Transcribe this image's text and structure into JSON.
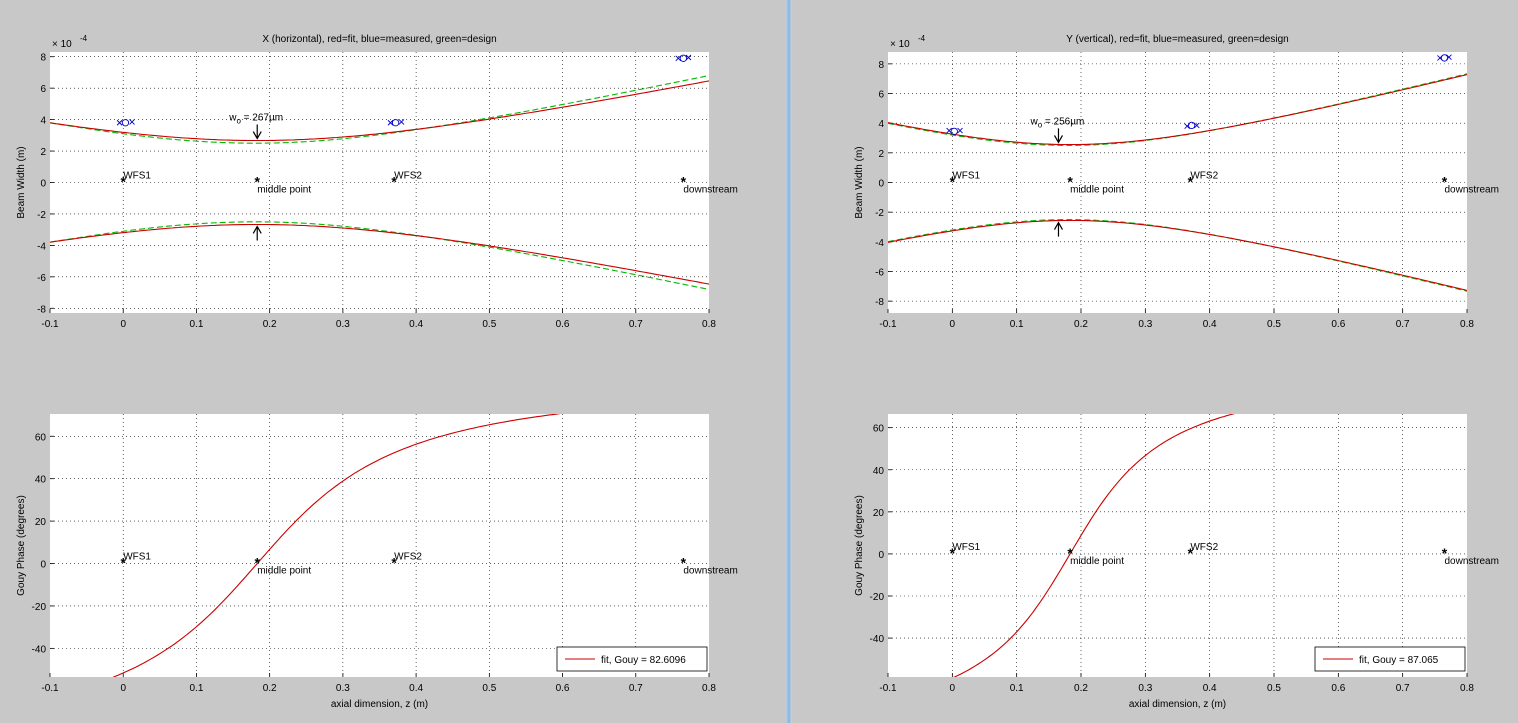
{
  "panels": [
    {
      "id": "x",
      "title": "X (horizontal), red=fit, blue=measured, green=design",
      "top": {
        "chart_data": {
          "type": "line",
          "title": "X (horizontal), red=fit, blue=measured, green=design",
          "xlabel": "",
          "ylabel": "Beam Width (m)",
          "exponent": "× 10",
          "exponent_power": "-4",
          "xlim": [
            -0.1,
            0.8
          ],
          "ylim": [
            -8.3,
            8.3
          ],
          "xticks": [
            -0.1,
            0,
            0.1,
            0.2,
            0.3,
            0.4,
            0.5,
            0.6,
            0.7,
            0.8
          ],
          "xticklabels": [
            "-0.1",
            "0",
            "0.1",
            "0.2",
            "0.3",
            "0.4",
            "0.5",
            "0.6",
            "0.7",
            "0.8"
          ],
          "yticks": [
            -8,
            -6,
            -4,
            -2,
            0,
            2,
            4,
            6,
            8
          ],
          "yticklabels": [
            "-8",
            "-6",
            "-4",
            "-2",
            "0",
            "2",
            "4",
            "6",
            "8"
          ],
          "grid": true,
          "beam": {
            "waist_z": 0.183,
            "waist": 2.67,
            "zR": 0.28,
            "m2": 1.0
          },
          "design": {
            "waist_z": 0.18,
            "waist": 2.5,
            "zR": 0.245
          },
          "waist_label": "267µm",
          "waist_annotation_z": 0.183,
          "measured": [
            {
              "z": -0.005,
              "w": 3.8
            },
            {
              "z": 0.003,
              "w": 3.8
            },
            {
              "z": 0.012,
              "w": 3.85
            },
            {
              "z": 0.365,
              "w": 3.8
            },
            {
              "z": 0.372,
              "w": 3.8
            },
            {
              "z": 0.38,
              "w": 3.85
            },
            {
              "z": 0.758,
              "w": 7.9
            },
            {
              "z": 0.765,
              "w": 7.9
            },
            {
              "z": 0.772,
              "w": 7.95
            }
          ],
          "markers": [
            {
              "z": 0,
              "label": "WFS1",
              "pos": "above"
            },
            {
              "z": 0.183,
              "label": "middle point",
              "pos": "below"
            },
            {
              "z": 0.37,
              "label": "WFS2",
              "pos": "above"
            },
            {
              "z": 0.765,
              "label": "downstream",
              "pos": "below"
            }
          ]
        }
      },
      "bottom": {
        "chart_data": {
          "type": "line",
          "xlabel": "axial dimension, z (m)",
          "ylabel": "Gouy Phase (degrees)",
          "xlim": [
            -0.1,
            0.8
          ],
          "ylim": [
            -53.5,
            70.5
          ],
          "xticks": [
            -0.1,
            0,
            0.1,
            0.2,
            0.3,
            0.4,
            0.5,
            0.6,
            0.7,
            0.8
          ],
          "xticklabels": [
            "-0.1",
            "0",
            "0.1",
            "0.2",
            "0.3",
            "0.4",
            "0.5",
            "0.6",
            "0.7",
            "0.8"
          ],
          "yticks": [
            -40,
            -20,
            0,
            20,
            40,
            60
          ],
          "yticklabels": [
            "-40",
            "-20",
            "0",
            "20",
            "40",
            "60"
          ],
          "grid": true,
          "gouy": {
            "waist_z": 0.183,
            "zR": 0.145
          },
          "legend": "fit, Gouy = 82.6096",
          "legend_position": "bottom-right",
          "markers": [
            {
              "z": 0,
              "label": "WFS1",
              "pos": "above"
            },
            {
              "z": 0.183,
              "label": "middle point",
              "pos": "below"
            },
            {
              "z": 0.37,
              "label": "WFS2",
              "pos": "above"
            },
            {
              "z": 0.765,
              "label": "downstream",
              "pos": "below"
            }
          ]
        }
      }
    },
    {
      "id": "y",
      "title": "Y (vertical), red=fit, blue=measured, green=design",
      "top": {
        "chart_data": {
          "type": "line",
          "title": "Y (vertical), red=fit, blue=measured, green=design",
          "xlabel": "",
          "ylabel": "Beam Width (m)",
          "exponent": "× 10",
          "exponent_power": "-4",
          "xlim": [
            -0.1,
            0.8
          ],
          "ylim": [
            -8.8,
            8.8
          ],
          "xticks": [
            -0.1,
            0,
            0.1,
            0.2,
            0.3,
            0.4,
            0.5,
            0.6,
            0.7,
            0.8
          ],
          "xticklabels": [
            "-0.1",
            "0",
            "0.1",
            "0.2",
            "0.3",
            "0.4",
            "0.5",
            "0.6",
            "0.7",
            "0.8"
          ],
          "yticks": [
            -8,
            -6,
            -4,
            -2,
            0,
            2,
            4,
            6,
            8
          ],
          "yticklabels": [
            "-8",
            "-6",
            "-4",
            "-2",
            "0",
            "2",
            "4",
            "6",
            "8"
          ],
          "grid": true,
          "beam": {
            "waist_z": 0.183,
            "waist": 2.56,
            "zR": 0.232,
            "m2": 1.0
          },
          "design": {
            "waist_z": 0.18,
            "waist": 2.5,
            "zR": 0.225
          },
          "waist_label": "256µm",
          "waist_annotation_z": 0.165,
          "measured": [
            {
              "z": -0.005,
              "w": 3.5
            },
            {
              "z": 0.003,
              "w": 3.45
            },
            {
              "z": 0.012,
              "w": 3.5
            },
            {
              "z": 0.365,
              "w": 3.8
            },
            {
              "z": 0.372,
              "w": 3.85
            },
            {
              "z": 0.38,
              "w": 3.85
            },
            {
              "z": 0.758,
              "w": 8.4
            },
            {
              "z": 0.765,
              "w": 8.4
            },
            {
              "z": 0.772,
              "w": 8.45
            }
          ],
          "markers": [
            {
              "z": 0,
              "label": "WFS1",
              "pos": "above"
            },
            {
              "z": 0.183,
              "label": "middle point",
              "pos": "below"
            },
            {
              "z": 0.37,
              "label": "WFS2",
              "pos": "above"
            },
            {
              "z": 0.765,
              "label": "downstream",
              "pos": "below"
            }
          ]
        }
      },
      "bottom": {
        "chart_data": {
          "type": "line",
          "xlabel": "axial dimension, z (m)",
          "ylabel": "Gouy Phase (degrees)",
          "xlim": [
            -0.1,
            0.8
          ],
          "ylim": [
            -58.5,
            66.5
          ],
          "xticks": [
            -0.1,
            0,
            0.1,
            0.2,
            0.3,
            0.4,
            0.5,
            0.6,
            0.7,
            0.8
          ],
          "xticklabels": [
            "-0.1",
            "0",
            "0.1",
            "0.2",
            "0.3",
            "0.4",
            "0.5",
            "0.6",
            "0.7",
            "0.8"
          ],
          "yticks": [
            -40,
            -20,
            0,
            20,
            40,
            60
          ],
          "yticklabels": [
            "-40",
            "-20",
            "0",
            "20",
            "40",
            "60"
          ],
          "grid": true,
          "gouy": {
            "waist_z": 0.183,
            "zR": 0.11
          },
          "legend": "fit, Gouy = 87.065",
          "legend_position": "bottom-right",
          "markers": [
            {
              "z": 0,
              "label": "WFS1",
              "pos": "above"
            },
            {
              "z": 0.183,
              "label": "middle point",
              "pos": "below"
            },
            {
              "z": 0.37,
              "label": "WFS2",
              "pos": "above"
            },
            {
              "z": 0.765,
              "label": "downstream",
              "pos": "below"
            }
          ]
        }
      }
    }
  ],
  "colors": {
    "fit": "#cc0000",
    "measured": "#0000cc",
    "design": "#00bb00",
    "plot_bg": "#ffffff",
    "window_bg": "#c8c8c8"
  }
}
